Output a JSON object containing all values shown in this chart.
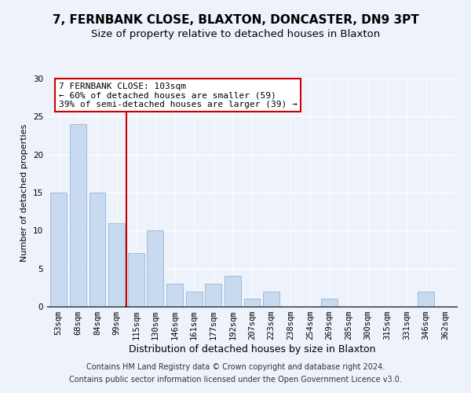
{
  "title1": "7, FERNBANK CLOSE, BLAXTON, DONCASTER, DN9 3PT",
  "title2": "Size of property relative to detached houses in Blaxton",
  "xlabel": "Distribution of detached houses by size in Blaxton",
  "ylabel": "Number of detached properties",
  "bar_labels": [
    "53sqm",
    "68sqm",
    "84sqm",
    "99sqm",
    "115sqm",
    "130sqm",
    "146sqm",
    "161sqm",
    "177sqm",
    "192sqm",
    "207sqm",
    "223sqm",
    "238sqm",
    "254sqm",
    "269sqm",
    "285sqm",
    "300sqm",
    "315sqm",
    "331sqm",
    "346sqm",
    "362sqm"
  ],
  "bar_values": [
    15,
    24,
    15,
    11,
    7,
    10,
    3,
    2,
    3,
    4,
    1,
    2,
    0,
    0,
    1,
    0,
    0,
    0,
    0,
    2,
    0
  ],
  "bar_color": "#c8daf0",
  "bar_edge_color": "#a0bcd8",
  "vline_color": "#cc0000",
  "annotation_line1": "7 FERNBANK CLOSE: 103sqm",
  "annotation_line2": "← 60% of detached houses are smaller (59)",
  "annotation_line3": "39% of semi-detached houses are larger (39) →",
  "annotation_box_color": "#ffffff",
  "annotation_box_edge": "#cc0000",
  "ylim": [
    0,
    30
  ],
  "yticks": [
    0,
    5,
    10,
    15,
    20,
    25,
    30
  ],
  "footer1": "Contains HM Land Registry data © Crown copyright and database right 2024.",
  "footer2": "Contains public sector information licensed under the Open Government Licence v3.0.",
  "bg_color": "#eef2fa",
  "plot_bg_color": "#eef2fa",
  "grid_color": "#ffffff",
  "title1_fontsize": 11,
  "title2_fontsize": 9.5,
  "xlabel_fontsize": 9,
  "ylabel_fontsize": 8,
  "tick_fontsize": 7.5,
  "annot_fontsize": 8,
  "footer_fontsize": 7
}
